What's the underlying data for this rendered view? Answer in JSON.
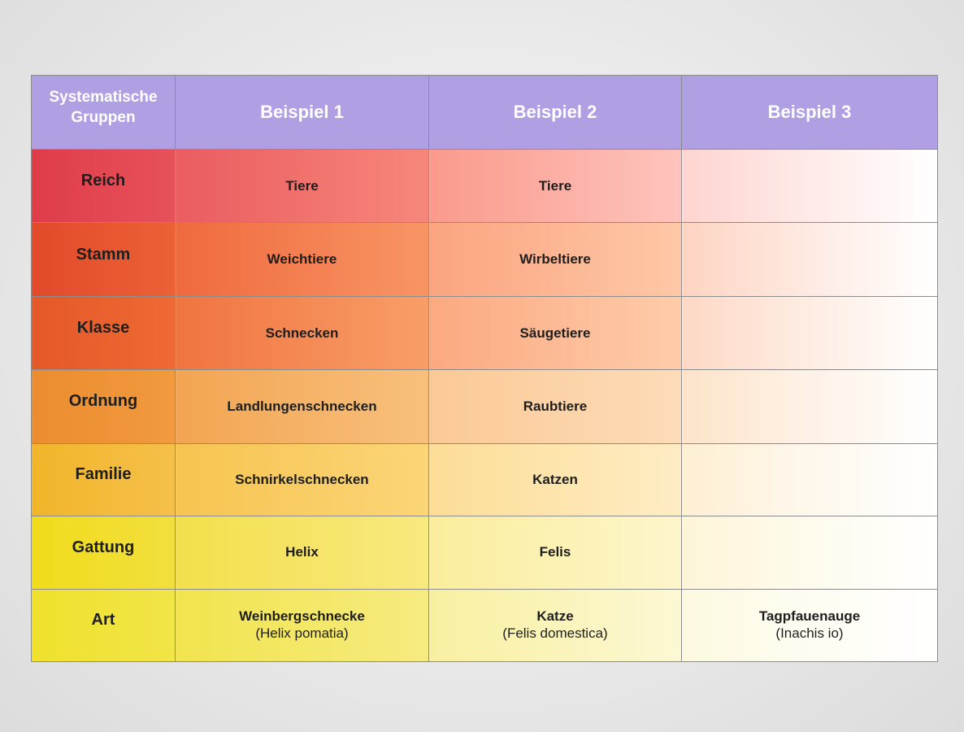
{
  "header": {
    "group_label_line1": "Systematische",
    "group_label_line2": "Gruppen",
    "example_1": "Beispiel 1",
    "example_2": "Beispiel 2",
    "example_3": "Beispiel 3"
  },
  "rows": [
    {
      "group": "Reich",
      "ex1": "Tiere",
      "ex2": "Tiere",
      "ex3": ""
    },
    {
      "group": "Stamm",
      "ex1": "Weichtiere",
      "ex2": "Wirbeltiere",
      "ex3": ""
    },
    {
      "group": "Klasse",
      "ex1": "Schnecken",
      "ex2": "Säugetiere",
      "ex3": ""
    },
    {
      "group": "Ordnung",
      "ex1": "Landlungenschnecken",
      "ex2": "Raubtiere",
      "ex3": ""
    },
    {
      "group": "Familie",
      "ex1": "Schnirkelschnecken",
      "ex2": "Katzen",
      "ex3": ""
    },
    {
      "group": "Gattung",
      "ex1": "Helix",
      "ex2": "Felis",
      "ex3": ""
    },
    {
      "group": "Art",
      "ex1": "Weinbergschnecke",
      "ex1_scientific": "(Helix pomatia)",
      "ex2": "Katze",
      "ex2_scientific": "(Felis domestica)",
      "ex3": "Tagpfauenauge",
      "ex3_scientific": "(Inachis io)"
    }
  ],
  "colors": {
    "header_bg": "#b19fe3",
    "header_text": "#ffffff",
    "reich": "#df3c49",
    "stamm": "#e24a2a",
    "klasse": "#e55828",
    "ordnung": "#ec8c30",
    "familie": "#f2b52a",
    "gattung": "#f0dc1a",
    "art": "#efe12c"
  }
}
